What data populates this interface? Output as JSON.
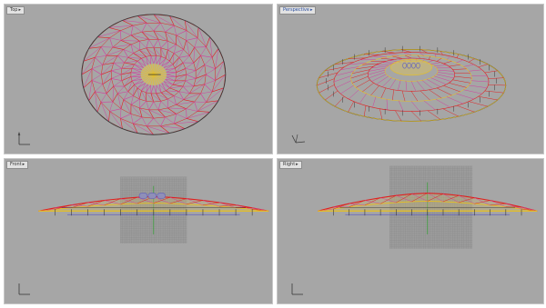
{
  "viewports": [
    {
      "id": "top",
      "label": "Top",
      "active": false
    },
    {
      "id": "perspective",
      "label": "Perspective",
      "active": true
    },
    {
      "id": "front",
      "label": "Front",
      "active": false
    },
    {
      "id": "right",
      "label": "Right",
      "active": false
    }
  ],
  "icons": {
    "tab_dropdown": "chevron-down-icon",
    "axis": "world-axis-icon"
  },
  "colors": {
    "viewport_bg": "#a6a6a6",
    "mesh_magenta": "#d040a0",
    "mesh_red": "#e02020",
    "mesh_yellow": "#e8c020",
    "outline": "#3a3a3a",
    "grid": "#8a8a8a",
    "axis_green": "#30a030",
    "purple": "#6060c0"
  }
}
